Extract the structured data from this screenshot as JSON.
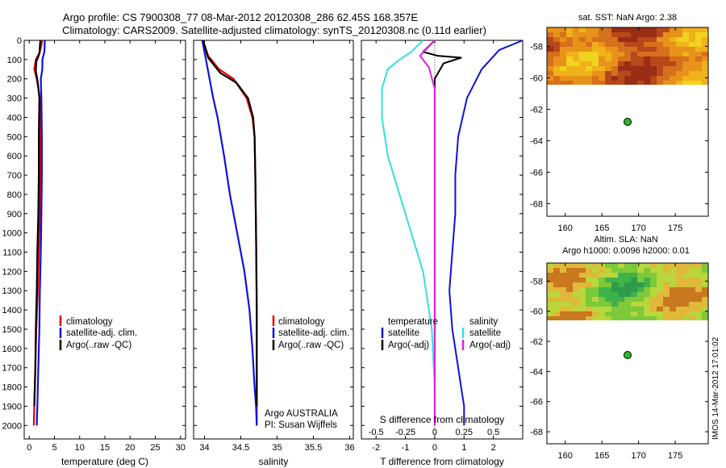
{
  "title": {
    "line1": "Argo profile: CS 7900308_77 08-Mar-2012 20120308_286 62.45S 168.357E",
    "line2": "Climatology: CARS2009. Satellite-adjusted climatology: synTS_20120308.nc (0.11d earlier)"
  },
  "footer": "IMOS 14-Mar-2012 17:01:02",
  "colors": {
    "climatology": "#e00000",
    "satellite": "#1010dd",
    "argo": "#000000",
    "satellite_salinity": "#33e0e0",
    "argo_salinity": "#e020e0"
  },
  "chart_data": [
    {
      "type": "line",
      "name": "temperature",
      "xlabel": "temperature (deg C)",
      "xlim": [
        -1,
        31
      ],
      "ylim": [
        0,
        2070
      ],
      "xticks": [
        0,
        5,
        10,
        15,
        20,
        25,
        30
      ],
      "yticks": [
        0,
        100,
        200,
        300,
        400,
        500,
        600,
        700,
        800,
        900,
        1000,
        1100,
        1200,
        1300,
        1400,
        1500,
        1600,
        1700,
        1800,
        1900,
        2000
      ],
      "legend": [
        "climatology",
        "satellite-adj. clim.",
        "Argo(..raw -QC)"
      ],
      "series": [
        {
          "name": "climatology",
          "color": "#e00000",
          "x": [
            2.6,
            2.1,
            1.3,
            1.0,
            1.5,
            2.1,
            2.2,
            2.2,
            2.1,
            1.9,
            1.7,
            1.4,
            1.2,
            1.0,
            0.9
          ],
          "y": [
            0,
            60,
            100,
            150,
            200,
            300,
            500,
            700,
            900,
            1100,
            1300,
            1500,
            1700,
            1900,
            2000
          ]
        },
        {
          "name": "satellite-adj. clim.",
          "color": "#1010dd",
          "x": [
            3.1,
            3.0,
            2.6,
            2.6,
            2.3,
            2.4,
            2.5,
            2.5,
            2.4,
            2.3,
            2.1,
            2.0,
            1.8,
            1.6,
            1.5
          ],
          "y": [
            0,
            60,
            100,
            150,
            200,
            300,
            500,
            700,
            900,
            1100,
            1300,
            1500,
            1700,
            1900,
            2000
          ]
        },
        {
          "name": "Argo(..raw -QC)",
          "color": "#000000",
          "x": [
            2.2,
            2.0,
            1.4,
            1.3,
            1.7,
            2.0,
            1.9,
            1.9,
            1.8,
            1.6,
            1.5,
            1.3,
            1.2,
            1.0
          ],
          "y": [
            0,
            70,
            110,
            160,
            220,
            300,
            500,
            700,
            900,
            1100,
            1300,
            1500,
            1700,
            1900
          ]
        }
      ]
    },
    {
      "type": "line",
      "name": "salinity",
      "xlabel": "salinity",
      "xlim": [
        33.85,
        36.05
      ],
      "ylim": [
        0,
        2070
      ],
      "xticks": [
        34,
        34.5,
        35,
        35.5,
        36
      ],
      "legend": [
        "climatology",
        "satellite-adj. clim.",
        "Argo(..raw -QC)"
      ],
      "annotations": [
        "Argo AUSTRALIA",
        "PI: Susan Wijffels"
      ],
      "series": [
        {
          "name": "climatology",
          "color": "#e00000",
          "x": [
            33.98,
            34.05,
            34.2,
            34.4,
            34.58,
            34.66,
            34.69,
            34.7,
            34.71,
            34.72,
            34.72,
            34.72
          ],
          "y": [
            0,
            80,
            150,
            200,
            300,
            400,
            500,
            700,
            1000,
            1400,
            1800,
            2000
          ]
        },
        {
          "name": "satellite-adj. clim.",
          "color": "#1010dd",
          "x": [
            33.97,
            34.02,
            34.07,
            34.12,
            34.18,
            34.27,
            34.35,
            34.45,
            34.55,
            34.62,
            34.66,
            34.69,
            34.71,
            34.72
          ],
          "y": [
            0,
            100,
            200,
            300,
            400,
            600,
            800,
            1000,
            1200,
            1400,
            1600,
            1800,
            1900,
            2000
          ]
        },
        {
          "name": "Argo(..raw -QC)",
          "color": "#000000",
          "x": [
            33.98,
            34.05,
            34.22,
            34.44,
            34.6,
            34.67,
            34.69,
            34.7,
            34.71,
            34.72,
            34.72
          ],
          "y": [
            0,
            90,
            170,
            220,
            300,
            400,
            500,
            700,
            1000,
            1400,
            1900
          ]
        }
      ]
    },
    {
      "type": "line",
      "name": "differences",
      "xlabel": "T difference from climatology",
      "xlabel_top": "S difference from climatology",
      "xlim": [
        -2.5,
        3.0
      ],
      "ylim": [
        0,
        2070
      ],
      "xticks_bottom": [
        -2,
        -1,
        0,
        1,
        2
      ],
      "xticks_top": [
        "-0.5",
        "-0.25",
        "0",
        "0.25",
        "0.5"
      ],
      "legend_headers": [
        "temperature",
        "salinity"
      ],
      "legend": [
        "satellite",
        "Argo(-adj)",
        "satellite",
        "Argo(-adj)"
      ],
      "series": [
        {
          "name": "temperature satellite",
          "color": "#1010dd",
          "x": [
            3.0,
            2.2,
            1.6,
            1.1,
            0.8,
            0.7,
            0.7,
            0.6,
            0.5
          ],
          "y": [
            0,
            50,
            150,
            300,
            500,
            700,
            900,
            1100,
            1300
          ]
        },
        {
          "name": "temperature satellite (deep)",
          "color": "#1010dd",
          "x": [
            0.5,
            0.6,
            0.8,
            0.9,
            1.0,
            1.0
          ],
          "y": [
            1300,
            1500,
            1700,
            1800,
            1900,
            2000
          ]
        },
        {
          "name": "temperature Argo(-adj)",
          "color": "#000000",
          "x": [
            0.0,
            -0.4,
            0.1,
            0.9,
            0.3,
            0.0,
            0.0,
            0.0,
            0.0
          ],
          "y": [
            0,
            60,
            80,
            90,
            120,
            200,
            500,
            1000,
            2000
          ]
        },
        {
          "name": "salinity satellite",
          "color": "#33e0e0",
          "x": [
            -0.4,
            -0.8,
            -1.2,
            -1.6,
            -1.8,
            -1.8,
            -1.6,
            -1.2,
            -0.8,
            -0.4,
            -0.1,
            0.0,
            0.0
          ],
          "y": [
            0,
            60,
            100,
            150,
            250,
            400,
            600,
            800,
            1000,
            1200,
            1500,
            1800,
            2000
          ]
        },
        {
          "name": "salinity Argo(-adj)",
          "color": "#e020e0",
          "x": [
            0.0,
            -0.5,
            -0.2,
            0.0,
            0.0,
            0.0,
            0.0
          ],
          "y": [
            0,
            80,
            140,
            250,
            500,
            1000,
            2000
          ]
        }
      ]
    },
    {
      "type": "heatmap",
      "name": "sst_map",
      "title": "sat. SST: NaN Argo: 2.38",
      "xlim": [
        157.5,
        179.5
      ],
      "ylim": [
        -68.8,
        -56.8
      ],
      "xticks": [
        160,
        165,
        170,
        175
      ],
      "yticks": [
        -58,
        -60,
        -62,
        -64,
        -66,
        -68
      ],
      "argo_position": [
        168.357,
        -62.45
      ]
    },
    {
      "type": "heatmap",
      "name": "sla_map",
      "title": "Altim. SLA: NaN",
      "subtitle": "Argo h1000: 0.0096 h2000: 0.01",
      "xlim": [
        157.5,
        179.5
      ],
      "ylim": [
        -68.8,
        -56.8
      ],
      "xticks": [
        160,
        165,
        170,
        175
      ],
      "yticks": [
        -58,
        -60,
        -62,
        -64,
        -66,
        -68
      ],
      "argo_position": [
        168.357,
        -62.45
      ]
    }
  ]
}
